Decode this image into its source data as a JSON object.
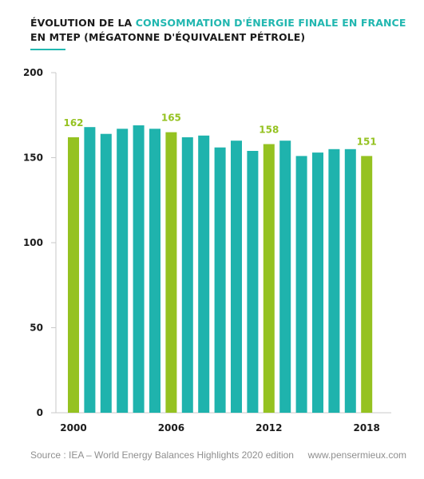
{
  "header": {
    "line1_prefix": "ÉVOLUTION DE LA ",
    "line1_accent": "CONSOMMATION D'ÉNERGIE FINALE EN FRANCE",
    "line2": "EN MTEP (MÉGATONNE D'ÉQUIVALENT PÉTROLE)"
  },
  "footer": {
    "source": "Source : IEA – World Energy Balances Highlights 2020 edition",
    "site": "www.pensermieux.com"
  },
  "colors": {
    "teal": "#1fb3ad",
    "green": "#95c221",
    "axis": "#c9c9c9",
    "text": "#1b1b1b"
  },
  "chart_data": {
    "type": "bar",
    "title": "ÉVOLUTION DE LA CONSOMMATION D'ÉNERGIE FINALE EN FRANCE",
    "subtitle": "EN MTEP (MÉGATONNE D'ÉQUIVALENT PÉTROLE)",
    "xlabel": "",
    "ylabel": "",
    "categories": [
      "2000",
      "2001",
      "2002",
      "2003",
      "2004",
      "2005",
      "2006",
      "2007",
      "2008",
      "2009",
      "2010",
      "2011",
      "2012",
      "2013",
      "2014",
      "2015",
      "2016",
      "2017",
      "2018"
    ],
    "values": [
      162,
      168,
      164,
      167,
      169,
      167,
      165,
      162,
      163,
      156,
      160,
      154,
      158,
      160,
      151,
      153,
      155,
      155,
      151
    ],
    "highlighted": [
      "2000",
      "2006",
      "2012",
      "2018"
    ],
    "x_tick_labels": [
      "2000",
      "2006",
      "2012",
      "2018"
    ],
    "y_ticks": [
      0,
      50,
      100,
      150,
      200
    ],
    "ylim": [
      0,
      200
    ],
    "data_labels": [
      {
        "category": "2000",
        "text": "162"
      },
      {
        "category": "2006",
        "text": "165"
      },
      {
        "category": "2012",
        "text": "158"
      },
      {
        "category": "2018",
        "text": "151"
      }
    ],
    "grid": false
  }
}
